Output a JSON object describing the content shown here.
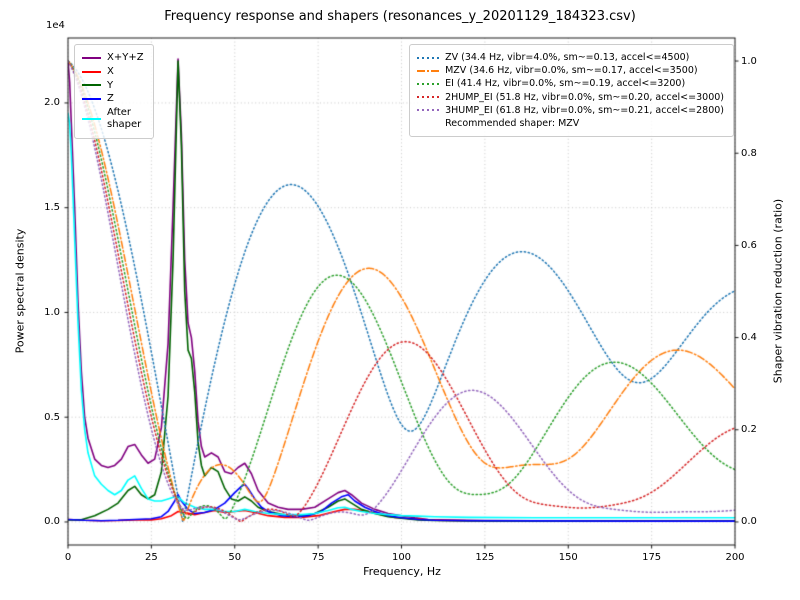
{
  "chart_data": {
    "type": "line",
    "title": "Frequency response and shapers (resonances_y_20201129_184323.csv)",
    "xlabel": "Frequency, Hz",
    "ylabel_left": "Power spectral density",
    "ylabel_right": "Shaper vibration reduction (ratio)",
    "y_left_offset_label": "1e4",
    "grid": true,
    "xlim": [
      0,
      200
    ],
    "x_ticks": [
      0,
      25,
      50,
      75,
      100,
      125,
      150,
      175,
      200
    ],
    "ylim_left": [
      -0.11,
      2.31
    ],
    "y_ticks_left": [
      0.0,
      0.5,
      1.0,
      1.5,
      2.0
    ],
    "ylim_right": [
      -0.05,
      1.05
    ],
    "y_ticks_right": [
      0.0,
      0.2,
      0.4,
      0.6,
      0.8,
      1.0
    ],
    "shaper_damping_ratio": 0.1,
    "test_damping_ratio": 0.1,
    "recommended_label": "Recommended shaper: MZV",
    "psd_series": [
      {
        "name": "X+Y+Z",
        "color": "#800080",
        "dash": "solid",
        "points": [
          [
            0,
            2.2
          ],
          [
            0.5,
            2.1
          ],
          [
            1,
            1.9
          ],
          [
            2,
            1.5
          ],
          [
            3,
            1.05
          ],
          [
            4,
            0.72
          ],
          [
            5,
            0.5
          ],
          [
            6,
            0.4
          ],
          [
            8,
            0.3
          ],
          [
            10,
            0.27
          ],
          [
            12,
            0.26
          ],
          [
            14,
            0.27
          ],
          [
            16,
            0.3
          ],
          [
            18,
            0.36
          ],
          [
            20,
            0.37
          ],
          [
            22,
            0.32
          ],
          [
            24,
            0.28
          ],
          [
            26,
            0.3
          ],
          [
            28,
            0.45
          ],
          [
            30,
            0.85
          ],
          [
            31.5,
            1.5
          ],
          [
            33,
            2.21
          ],
          [
            34,
            1.85
          ],
          [
            35,
            1.25
          ],
          [
            36,
            0.95
          ],
          [
            37,
            0.88
          ],
          [
            38,
            0.72
          ],
          [
            39,
            0.48
          ],
          [
            40,
            0.36
          ],
          [
            41,
            0.31
          ],
          [
            43,
            0.33
          ],
          [
            45,
            0.31
          ],
          [
            47,
            0.24
          ],
          [
            49,
            0.23
          ],
          [
            51,
            0.26
          ],
          [
            53,
            0.28
          ],
          [
            55,
            0.23
          ],
          [
            57,
            0.15
          ],
          [
            60,
            0.09
          ],
          [
            63,
            0.07
          ],
          [
            66,
            0.06
          ],
          [
            70,
            0.06
          ],
          [
            74,
            0.07
          ],
          [
            78,
            0.11
          ],
          [
            81,
            0.14
          ],
          [
            83,
            0.15
          ],
          [
            85,
            0.13
          ],
          [
            88,
            0.09
          ],
          [
            92,
            0.06
          ],
          [
            96,
            0.04
          ],
          [
            100,
            0.03
          ],
          [
            104,
            0.02
          ],
          [
            108,
            0.012
          ],
          [
            115,
            0.009
          ],
          [
            125,
            0.007
          ],
          [
            140,
            0.006
          ],
          [
            160,
            0.006
          ],
          [
            180,
            0.006
          ],
          [
            200,
            0.006
          ]
        ]
      },
      {
        "name": "X",
        "color": "#ff0000",
        "dash": "solid",
        "points": [
          [
            0,
            0.012
          ],
          [
            5,
            0.008
          ],
          [
            10,
            0.006
          ],
          [
            15,
            0.007
          ],
          [
            20,
            0.01
          ],
          [
            25,
            0.01
          ],
          [
            28,
            0.015
          ],
          [
            31,
            0.03
          ],
          [
            33,
            0.05
          ],
          [
            35,
            0.045
          ],
          [
            38,
            0.035
          ],
          [
            41,
            0.045
          ],
          [
            44,
            0.055
          ],
          [
            47,
            0.045
          ],
          [
            50,
            0.05
          ],
          [
            53,
            0.055
          ],
          [
            56,
            0.045
          ],
          [
            60,
            0.03
          ],
          [
            65,
            0.022
          ],
          [
            70,
            0.022
          ],
          [
            75,
            0.03
          ],
          [
            80,
            0.05
          ],
          [
            83,
            0.06
          ],
          [
            86,
            0.06
          ],
          [
            90,
            0.05
          ],
          [
            94,
            0.035
          ],
          [
            98,
            0.022
          ],
          [
            103,
            0.015
          ],
          [
            110,
            0.008
          ],
          [
            120,
            0.006
          ],
          [
            140,
            0.005
          ],
          [
            170,
            0.004
          ],
          [
            200,
            0.004
          ]
        ]
      },
      {
        "name": "Y",
        "color": "#006400",
        "dash": "solid",
        "points": [
          [
            0,
            0.01
          ],
          [
            4,
            0.01
          ],
          [
            8,
            0.03
          ],
          [
            12,
            0.06
          ],
          [
            15,
            0.09
          ],
          [
            18,
            0.15
          ],
          [
            20,
            0.17
          ],
          [
            22,
            0.13
          ],
          [
            24,
            0.11
          ],
          [
            26,
            0.13
          ],
          [
            28,
            0.24
          ],
          [
            30,
            0.6
          ],
          [
            31.5,
            1.25
          ],
          [
            33,
            2.2
          ],
          [
            34,
            1.8
          ],
          [
            35,
            1.1
          ],
          [
            36,
            0.82
          ],
          [
            37,
            0.78
          ],
          [
            38,
            0.62
          ],
          [
            39,
            0.38
          ],
          [
            40,
            0.27
          ],
          [
            41,
            0.22
          ],
          [
            43,
            0.26
          ],
          [
            45,
            0.24
          ],
          [
            47,
            0.16
          ],
          [
            49,
            0.11
          ],
          [
            51,
            0.1
          ],
          [
            53,
            0.12
          ],
          [
            55,
            0.1
          ],
          [
            57,
            0.07
          ],
          [
            60,
            0.05
          ],
          [
            63,
            0.04
          ],
          [
            66,
            0.03
          ],
          [
            70,
            0.03
          ],
          [
            74,
            0.04
          ],
          [
            78,
            0.07
          ],
          [
            81,
            0.1
          ],
          [
            83,
            0.11
          ],
          [
            85,
            0.09
          ],
          [
            88,
            0.06
          ],
          [
            92,
            0.04
          ],
          [
            96,
            0.025
          ],
          [
            100,
            0.018
          ],
          [
            105,
            0.01
          ],
          [
            110,
            0.007
          ],
          [
            120,
            0.005
          ],
          [
            140,
            0.004
          ],
          [
            160,
            0.004
          ],
          [
            180,
            0.004
          ],
          [
            200,
            0.004
          ]
        ]
      },
      {
        "name": "Z",
        "color": "#0000ff",
        "dash": "solid",
        "points": [
          [
            0,
            0.012
          ],
          [
            5,
            0.008
          ],
          [
            10,
            0.006
          ],
          [
            15,
            0.008
          ],
          [
            20,
            0.012
          ],
          [
            25,
            0.015
          ],
          [
            28,
            0.025
          ],
          [
            30,
            0.05
          ],
          [
            32,
            0.1
          ],
          [
            33,
            0.13
          ],
          [
            34,
            0.1
          ],
          [
            36,
            0.06
          ],
          [
            38,
            0.04
          ],
          [
            41,
            0.045
          ],
          [
            44,
            0.06
          ],
          [
            47,
            0.09
          ],
          [
            50,
            0.14
          ],
          [
            52,
            0.17
          ],
          [
            53,
            0.18
          ],
          [
            54,
            0.16
          ],
          [
            56,
            0.11
          ],
          [
            58,
            0.07
          ],
          [
            60,
            0.05
          ],
          [
            64,
            0.03
          ],
          [
            68,
            0.025
          ],
          [
            72,
            0.03
          ],
          [
            76,
            0.05
          ],
          [
            79,
            0.09
          ],
          [
            82,
            0.12
          ],
          [
            84,
            0.13
          ],
          [
            86,
            0.1
          ],
          [
            89,
            0.07
          ],
          [
            92,
            0.05
          ],
          [
            96,
            0.03
          ],
          [
            100,
            0.02
          ],
          [
            105,
            0.012
          ],
          [
            110,
            0.008
          ],
          [
            120,
            0.006
          ],
          [
            140,
            0.005
          ],
          [
            170,
            0.004
          ],
          [
            200,
            0.004
          ]
        ]
      },
      {
        "name": "After\nshaper",
        "color": "#00ffff",
        "dash": "solid",
        "points": [
          [
            0,
            1.95
          ],
          [
            0.5,
            1.9
          ],
          [
            1,
            1.75
          ],
          [
            2,
            1.35
          ],
          [
            3,
            0.95
          ],
          [
            4,
            0.63
          ],
          [
            5,
            0.44
          ],
          [
            6,
            0.33
          ],
          [
            8,
            0.22
          ],
          [
            10,
            0.18
          ],
          [
            12,
            0.15
          ],
          [
            14,
            0.13
          ],
          [
            16,
            0.15
          ],
          [
            18,
            0.2
          ],
          [
            20,
            0.22
          ],
          [
            22,
            0.16
          ],
          [
            24,
            0.11
          ],
          [
            26,
            0.1
          ],
          [
            28,
            0.1
          ],
          [
            30,
            0.11
          ],
          [
            32,
            0.12
          ],
          [
            33,
            0.12
          ],
          [
            35,
            0.09
          ],
          [
            38,
            0.07
          ],
          [
            41,
            0.06
          ],
          [
            44,
            0.06
          ],
          [
            47,
            0.05
          ],
          [
            50,
            0.05
          ],
          [
            53,
            0.06
          ],
          [
            56,
            0.05
          ],
          [
            60,
            0.04
          ],
          [
            65,
            0.035
          ],
          [
            70,
            0.035
          ],
          [
            74,
            0.04
          ],
          [
            78,
            0.055
          ],
          [
            81,
            0.068
          ],
          [
            83,
            0.07
          ],
          [
            85,
            0.06
          ],
          [
            88,
            0.05
          ],
          [
            92,
            0.04
          ],
          [
            96,
            0.035
          ],
          [
            100,
            0.03
          ],
          [
            105,
            0.028
          ],
          [
            110,
            0.025
          ],
          [
            120,
            0.022
          ],
          [
            140,
            0.02
          ],
          [
            160,
            0.02
          ],
          [
            180,
            0.02
          ],
          [
            200,
            0.02
          ]
        ]
      }
    ],
    "shapers": [
      {
        "name": "ZV",
        "freq": 34.4,
        "vibr": "4.0%",
        "smoothing": 0.13,
        "max_accel": 4500,
        "color": "#1f77b4",
        "dash": "dotted",
        "label": "ZV (34.4 Hz, vibr=4.0%, sm~=0.13, accel<=4500)"
      },
      {
        "name": "MZV",
        "freq": 34.6,
        "vibr": "0.0%",
        "smoothing": 0.17,
        "max_accel": 3500,
        "color": "#ff7f0e",
        "dash": "dashdot",
        "label": "MZV (34.6 Hz, vibr=0.0%, sm~=0.17, accel<=3500)"
      },
      {
        "name": "EI",
        "freq": 41.4,
        "vibr": "0.0%",
        "smoothing": 0.19,
        "max_accel": 3200,
        "color": "#2ca02c",
        "dash": "dotted",
        "label": "EI (41.4 Hz, vibr=0.0%, sm~=0.19, accel<=3200)"
      },
      {
        "name": "2HUMP_EI",
        "freq": 51.8,
        "vibr": "0.0%",
        "smoothing": 0.2,
        "max_accel": 3000,
        "color": "#d62728",
        "dash": "dotted",
        "label": "2HUMP_EI (51.8 Hz, vibr=0.0%, sm~=0.20, accel<=3000)"
      },
      {
        "name": "3HUMP_EI",
        "freq": 61.8,
        "vibr": "0.0%",
        "smoothing": 0.21,
        "max_accel": 2800,
        "color": "#9467bd",
        "dash": "dotted",
        "label": "3HUMP_EI (61.8 Hz, vibr=0.0%, sm~=0.21, accel<=2800)"
      }
    ]
  }
}
